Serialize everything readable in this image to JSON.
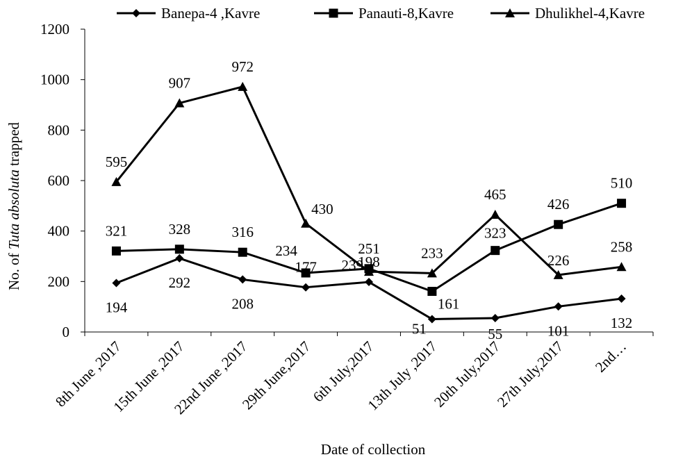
{
  "chart_data": {
    "type": "line",
    "title": "",
    "xlabel": "Date of collection",
    "ylabel": {
      "prefix": "No. of ",
      "italic": "Tuta  absoluta",
      "suffix": " trapped"
    },
    "ylim": [
      0,
      1200
    ],
    "yticks": [
      "0",
      "200",
      "400",
      "600",
      "800",
      "1000",
      "1200"
    ],
    "grid": false,
    "legend_position": "top",
    "categories": [
      "8th June ,2017",
      "15th June ,2017",
      "22nd June ,2017",
      "29th June,2017",
      "6th July,2017",
      "13th July ,2017",
      "20th July,2017",
      "27th July,2017",
      "2nd…"
    ],
    "series": [
      {
        "name": "Banepa-4 ,Kavre",
        "marker": "diamond",
        "values": [
          194,
          292,
          208,
          177,
          198,
          51,
          55,
          101,
          132
        ],
        "labels": [
          "194",
          "292",
          "208",
          "177",
          "198",
          "51",
          "55",
          "101",
          "132"
        ]
      },
      {
        "name": "Panauti-8,Kavre",
        "marker": "square",
        "values": [
          321,
          328,
          316,
          234,
          251,
          161,
          323,
          426,
          510
        ],
        "labels": [
          "321",
          "328",
          "316",
          "234",
          "251",
          "161",
          "323",
          "426",
          "510"
        ]
      },
      {
        "name": "Dhulikhel-4,Kavre",
        "marker": "triangle",
        "values": [
          595,
          907,
          972,
          430,
          239,
          233,
          465,
          226,
          258
        ],
        "labels": [
          "595",
          "907",
          "972",
          "430",
          "239",
          "233",
          "465",
          "226",
          "258"
        ]
      }
    ],
    "colors": {
      "line": "#000000",
      "background": "#ffffff"
    }
  }
}
